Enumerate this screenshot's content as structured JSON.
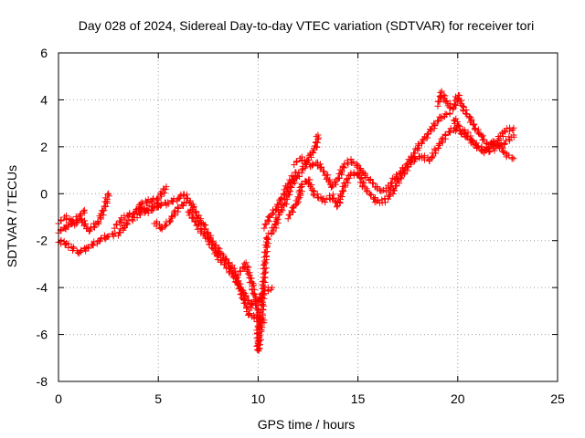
{
  "chart_data": {
    "type": "scatter",
    "title": "Day 028 of 2024, Sidereal Day-to-day VTEC variation (SDTVAR) for receiver tori",
    "xlabel": "GPS time / hours",
    "ylabel": "SDTVAR / TECUs",
    "xlim": [
      0,
      25
    ],
    "ylim": [
      -8,
      6
    ],
    "x_ticks": [
      0,
      5,
      10,
      15,
      20,
      25
    ],
    "y_ticks": [
      -8,
      -6,
      -4,
      -2,
      0,
      2,
      4,
      6
    ],
    "grid": true,
    "marker": "+",
    "series": [
      {
        "name": "SDTVAR",
        "color": "#ff0000",
        "trace_groups": [
          [
            [
              0.0,
              -1.2
            ],
            [
              0.4,
              -1.0
            ],
            [
              0.8,
              -1.3
            ],
            [
              1.2,
              -1.1
            ],
            [
              1.5,
              -1.6
            ],
            [
              2.0,
              -1.2
            ],
            [
              2.3,
              -0.6
            ],
            [
              2.5,
              0.0
            ]
          ],
          [
            [
              0.0,
              -2.0
            ],
            [
              0.5,
              -2.2
            ],
            [
              1.0,
              -2.5
            ],
            [
              1.5,
              -2.3
            ],
            [
              2.0,
              -2.0
            ],
            [
              2.5,
              -1.8
            ],
            [
              3.0,
              -1.7
            ],
            [
              3.5,
              -1.2
            ],
            [
              4.0,
              -0.9
            ],
            [
              4.5,
              -0.6
            ],
            [
              5.0,
              -0.4
            ]
          ],
          [
            [
              0.0,
              -1.6
            ],
            [
              0.5,
              -1.4
            ],
            [
              1.0,
              -1.0
            ],
            [
              1.3,
              -0.7
            ]
          ],
          [
            [
              2.8,
              -1.4
            ],
            [
              3.3,
              -1.0
            ],
            [
              3.8,
              -0.8
            ],
            [
              4.2,
              -0.4
            ],
            [
              4.6,
              -0.3
            ],
            [
              5.0,
              -0.2
            ],
            [
              5.4,
              0.3
            ]
          ],
          [
            [
              4.8,
              -1.2
            ],
            [
              5.2,
              -1.5
            ],
            [
              5.6,
              -1.1
            ],
            [
              6.0,
              -0.6
            ],
            [
              6.4,
              -0.4
            ]
          ],
          [
            [
              4.0,
              -0.6
            ],
            [
              4.5,
              -0.8
            ],
            [
              5.0,
              -0.5
            ],
            [
              5.5,
              -0.4
            ],
            [
              6.0,
              -0.2
            ],
            [
              6.3,
              0.0
            ],
            [
              6.7,
              -0.5
            ],
            [
              7.0,
              -1.0
            ],
            [
              7.3,
              -1.4
            ],
            [
              7.6,
              -1.9
            ],
            [
              8.0,
              -2.4
            ],
            [
              8.4,
              -2.8
            ],
            [
              8.8,
              -3.3
            ],
            [
              9.0,
              -3.8
            ],
            [
              9.3,
              -4.6
            ],
            [
              9.6,
              -5.2
            ],
            [
              10.0,
              -5.3
            ],
            [
              10.3,
              -5.5
            ]
          ],
          [
            [
              6.5,
              -0.7
            ],
            [
              7.0,
              -1.4
            ],
            [
              7.5,
              -2.0
            ],
            [
              8.0,
              -2.7
            ],
            [
              8.5,
              -3.2
            ],
            [
              9.0,
              -3.8
            ],
            [
              9.3,
              -4.3
            ],
            [
              9.7,
              -4.8
            ],
            [
              10.0,
              -4.6
            ],
            [
              10.3,
              -4.2
            ],
            [
              10.7,
              -4.0
            ]
          ],
          [
            [
              9.0,
              -3.4
            ],
            [
              9.4,
              -3.0
            ],
            [
              9.7,
              -3.9
            ],
            [
              10.0,
              -5.0
            ],
            [
              10.0,
              -6.7
            ],
            [
              10.1,
              -6.0
            ],
            [
              10.2,
              -5.0
            ],
            [
              10.3,
              -3.5
            ],
            [
              10.4,
              -2.3
            ],
            [
              10.5,
              -1.8
            ],
            [
              10.7,
              -1.6
            ],
            [
              10.9,
              -1.3
            ],
            [
              11.0,
              -0.9
            ],
            [
              11.3,
              -0.5
            ],
            [
              11.5,
              0.0
            ],
            [
              11.7,
              0.4
            ],
            [
              12.0,
              0.8
            ],
            [
              12.3,
              1.1
            ],
            [
              12.6,
              1.6
            ],
            [
              12.9,
              2.0
            ],
            [
              13.0,
              2.5
            ]
          ],
          [
            [
              10.3,
              -1.4
            ],
            [
              10.6,
              -1.0
            ],
            [
              10.9,
              -0.6
            ],
            [
              11.2,
              -0.2
            ],
            [
              11.5,
              0.4
            ],
            [
              11.9,
              0.9
            ]
          ],
          [
            [
              11.5,
              -1.0
            ],
            [
              11.8,
              -0.6
            ],
            [
              12.0,
              -0.3
            ],
            [
              12.2,
              0.4
            ],
            [
              12.5,
              0.6
            ],
            [
              12.8,
              0.0
            ],
            [
              13.1,
              -0.2
            ],
            [
              13.4,
              -0.3
            ],
            [
              13.7,
              -0.1
            ],
            [
              14.0,
              -0.5
            ],
            [
              14.3,
              0.3
            ],
            [
              14.6,
              0.8
            ],
            [
              15.0,
              0.9
            ],
            [
              15.3,
              0.3
            ],
            [
              15.6,
              0.0
            ],
            [
              16.0,
              -0.4
            ],
            [
              16.3,
              -0.3
            ],
            [
              16.7,
              0.0
            ],
            [
              17.0,
              0.5
            ],
            [
              17.4,
              1.0
            ],
            [
              17.8,
              1.5
            ],
            [
              18.2,
              1.6
            ]
          ],
          [
            [
              11.8,
              1.3
            ],
            [
              12.2,
              1.5
            ],
            [
              12.6,
              1.2
            ],
            [
              13.0,
              1.3
            ],
            [
              13.4,
              0.8
            ],
            [
              13.7,
              0.3
            ],
            [
              14.0,
              0.6
            ],
            [
              14.3,
              1.2
            ],
            [
              14.6,
              1.4
            ],
            [
              15.0,
              1.2
            ],
            [
              15.3,
              0.8
            ],
            [
              15.6,
              0.6
            ],
            [
              15.9,
              0.3
            ],
            [
              16.2,
              0.1
            ],
            [
              16.5,
              0.2
            ],
            [
              16.8,
              0.6
            ],
            [
              17.2,
              1.0
            ],
            [
              17.6,
              1.4
            ],
            [
              18.0,
              2.0
            ],
            [
              18.4,
              2.4
            ],
            [
              18.8,
              2.9
            ],
            [
              19.2,
              3.3
            ],
            [
              19.6,
              3.4
            ]
          ],
          [
            [
              18.2,
              1.6
            ],
            [
              18.6,
              1.4
            ],
            [
              19.0,
              2.0
            ],
            [
              19.4,
              2.5
            ],
            [
              19.8,
              2.8
            ],
            [
              20.2,
              2.6
            ],
            [
              20.6,
              2.3
            ],
            [
              21.0,
              2.0
            ],
            [
              21.4,
              1.9
            ],
            [
              21.8,
              2.2
            ],
            [
              22.2,
              1.9
            ],
            [
              22.5,
              1.6
            ],
            [
              22.8,
              1.5
            ]
          ],
          [
            [
              19.0,
              3.8
            ],
            [
              19.2,
              4.3
            ],
            [
              19.5,
              3.8
            ],
            [
              19.8,
              3.6
            ],
            [
              20.0,
              4.2
            ],
            [
              20.3,
              3.6
            ],
            [
              20.6,
              3.2
            ],
            [
              20.9,
              2.8
            ],
            [
              21.2,
              2.4
            ],
            [
              21.6,
              2.0
            ],
            [
              22.0,
              2.3
            ],
            [
              22.4,
              2.7
            ],
            [
              22.8,
              2.8
            ]
          ],
          [
            [
              19.8,
              3.2
            ],
            [
              20.1,
              2.8
            ],
            [
              20.4,
              2.6
            ],
            [
              20.8,
              2.2
            ],
            [
              21.2,
              1.8
            ],
            [
              21.6,
              1.8
            ],
            [
              22.0,
              2.0
            ],
            [
              22.4,
              2.2
            ],
            [
              22.8,
              2.5
            ]
          ]
        ]
      }
    ]
  }
}
